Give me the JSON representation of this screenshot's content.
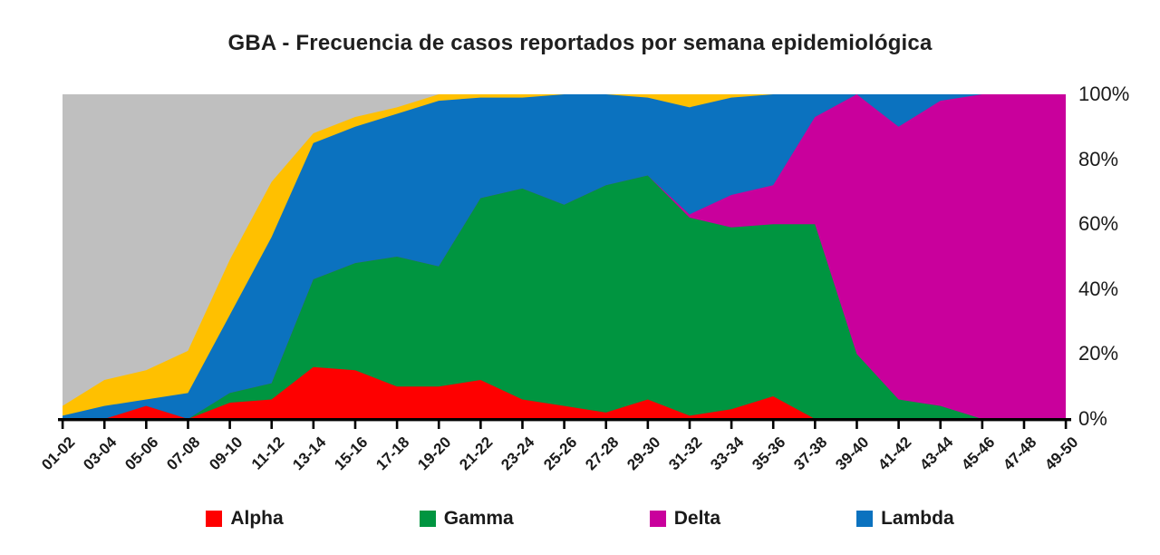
{
  "title": "GBA - Frecuencia de casos reportados por semana epidemiológica",
  "chart_data": {
    "type": "area",
    "stacked": true,
    "percent": true,
    "title": "GBA - Frecuencia de casos reportados por semana epidemiológica",
    "xlabel": "",
    "ylabel": "",
    "ylim": [
      0,
      100
    ],
    "grid": false,
    "legend_position": "bottom",
    "y_axis_position": "right",
    "y_ticks": [
      "0%",
      "20%",
      "40%",
      "60%",
      "80%",
      "100%"
    ],
    "y_tick_values": [
      0,
      20,
      40,
      60,
      80,
      100
    ],
    "categories": [
      "01-02",
      "03-04",
      "05-06",
      "07-08",
      "09-10",
      "11-12",
      "13-14",
      "15-16",
      "17-18",
      "19-20",
      "21-22",
      "23-24",
      "25-26",
      "27-28",
      "29-30",
      "31-32",
      "33-34",
      "35-36",
      "37-38",
      "39-40",
      "41-42",
      "43-44",
      "45-46",
      "47-48",
      "49-50"
    ],
    "series": [
      {
        "name": "Alpha",
        "color": "#FE0000",
        "in_legend": true,
        "values": [
          0,
          0,
          4,
          0,
          5,
          6,
          16,
          15,
          10,
          10,
          12,
          6,
          4,
          2,
          6,
          1,
          3,
          7,
          0,
          0,
          0,
          0,
          0,
          0,
          0
        ]
      },
      {
        "name": "Gamma",
        "color": "#009540",
        "in_legend": true,
        "values": [
          0,
          0,
          0,
          0,
          3,
          5,
          27,
          33,
          40,
          37,
          56,
          65,
          62,
          70,
          69,
          61,
          56,
          53,
          60,
          20,
          6,
          4,
          0,
          0,
          0
        ]
      },
      {
        "name": "Delta",
        "color": "#C9009C",
        "in_legend": true,
        "values": [
          0,
          0,
          0,
          0,
          0,
          0,
          0,
          0,
          0,
          0,
          0,
          0,
          0,
          0,
          0,
          1,
          10,
          12,
          33,
          80,
          84,
          94,
          100,
          100,
          100
        ]
      },
      {
        "name": "Lambda",
        "color": "#0B72BF",
        "in_legend": true,
        "values": [
          1,
          4,
          2,
          8,
          24,
          45,
          42,
          42,
          44,
          51,
          31,
          28,
          34,
          28,
          24,
          33,
          30,
          28,
          7,
          0,
          10,
          2,
          0,
          0,
          0
        ]
      },
      {
        "name": "unlabeled-yellow",
        "color": "#FFC000",
        "in_legend": false,
        "values": [
          3,
          8,
          9,
          13,
          17,
          17,
          3,
          3,
          2,
          2,
          1,
          1,
          0,
          0,
          1,
          4,
          1,
          0,
          0,
          0,
          0,
          0,
          0,
          0,
          0
        ]
      },
      {
        "name": "unlabeled-gray",
        "color": "#BFBFBF",
        "in_legend": false,
        "values": [
          96,
          88,
          85,
          79,
          51,
          27,
          12,
          7,
          4,
          0,
          0,
          0,
          0,
          0,
          0,
          0,
          0,
          0,
          0,
          0,
          0,
          0,
          0,
          0,
          0
        ]
      }
    ],
    "axis_color": "#000000"
  }
}
